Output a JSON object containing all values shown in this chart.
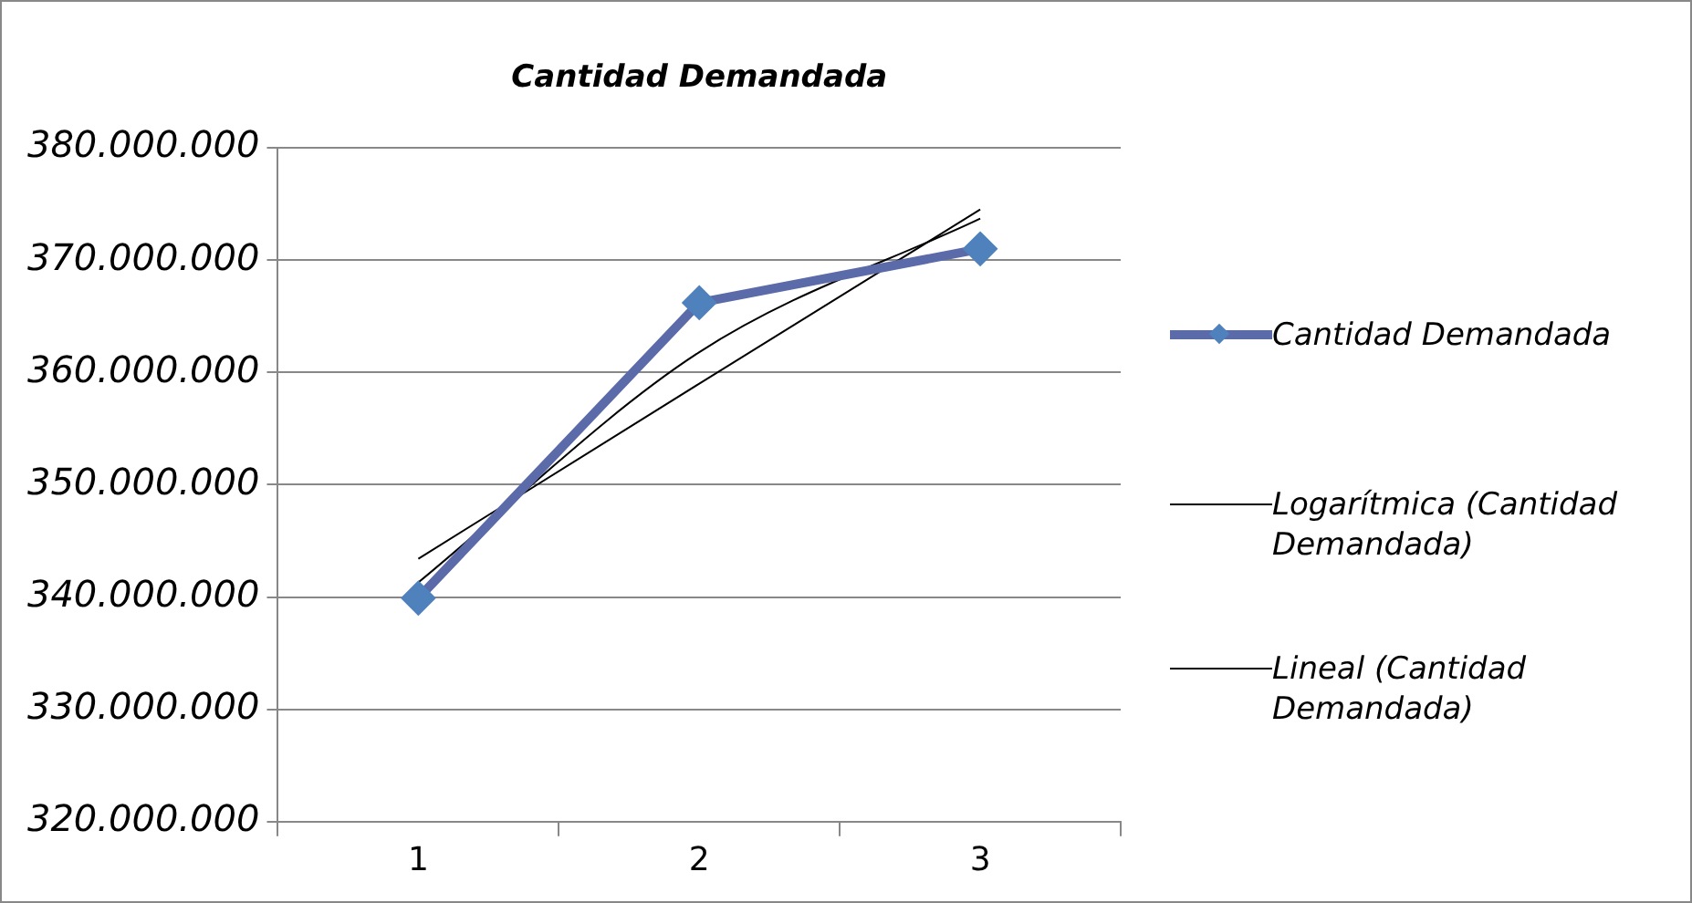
{
  "chart_data": {
    "type": "line",
    "title": "Cantidad Demandada",
    "categories": [
      "1",
      "2",
      "3"
    ],
    "series": [
      {
        "name": "Cantidad Demandada",
        "color": "#5b6aa8",
        "values": [
          339900000,
          366200000,
          371000000
        ],
        "marker": "diamond"
      },
      {
        "name": "Logarítmica (Cantidad Demandada)",
        "color": "#000000",
        "values": [
          341300000,
          361800000,
          373700000
        ],
        "marker": "none"
      },
      {
        "name": "Lineal (Cantidad Demandada)",
        "color": "#000000",
        "values": [
          343400000,
          359000000,
          374500000
        ],
        "marker": "none"
      }
    ],
    "ylim": [
      320000000,
      380000000
    ],
    "yticks": [
      {
        "value": 320000000,
        "label": "320.000.000"
      },
      {
        "value": 330000000,
        "label": "330.000.000"
      },
      {
        "value": 340000000,
        "label": "340.000.000"
      },
      {
        "value": 350000000,
        "label": "350.000.000"
      },
      {
        "value": 360000000,
        "label": "360.000.000"
      },
      {
        "value": 370000000,
        "label": "370.000.000"
      },
      {
        "value": 380000000,
        "label": "380.000.000"
      }
    ],
    "grid": "y",
    "legend": "right",
    "line_style": "solid"
  }
}
